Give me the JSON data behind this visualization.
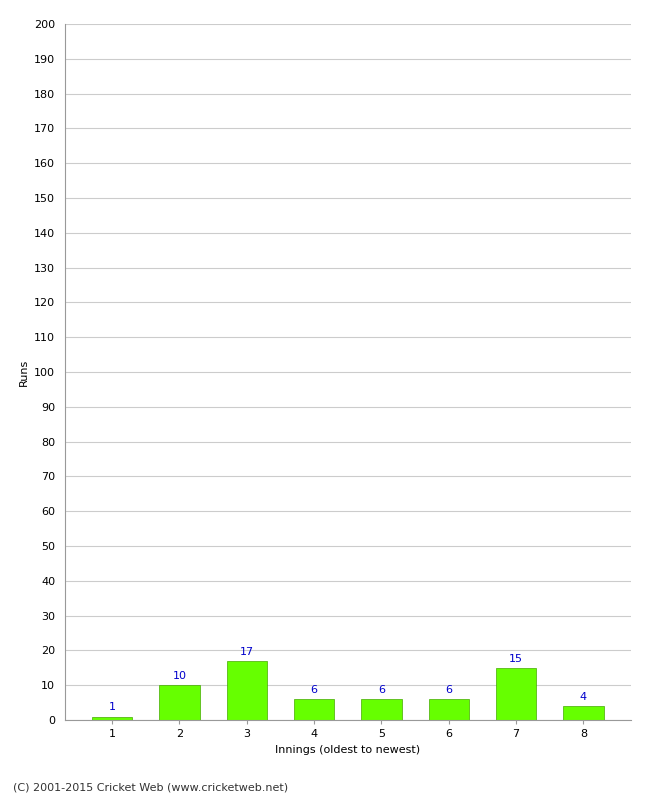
{
  "categories": [
    1,
    2,
    3,
    4,
    5,
    6,
    7,
    8
  ],
  "values": [
    1,
    10,
    17,
    6,
    6,
    6,
    15,
    4
  ],
  "bar_color": "#66ff00",
  "bar_edge_color": "#44aa00",
  "xlabel": "Innings (oldest to newest)",
  "ylabel": "Runs",
  "ylim": [
    0,
    200
  ],
  "yticks": [
    0,
    10,
    20,
    30,
    40,
    50,
    60,
    70,
    80,
    90,
    100,
    110,
    120,
    130,
    140,
    150,
    160,
    170,
    180,
    190,
    200
  ],
  "label_color": "#0000cc",
  "label_fontsize": 8,
  "axis_fontsize": 8,
  "tick_fontsize": 8,
  "footer": "(C) 2001-2015 Cricket Web (www.cricketweb.net)",
  "footer_fontsize": 8,
  "background_color": "#ffffff",
  "grid_color": "#cccccc"
}
